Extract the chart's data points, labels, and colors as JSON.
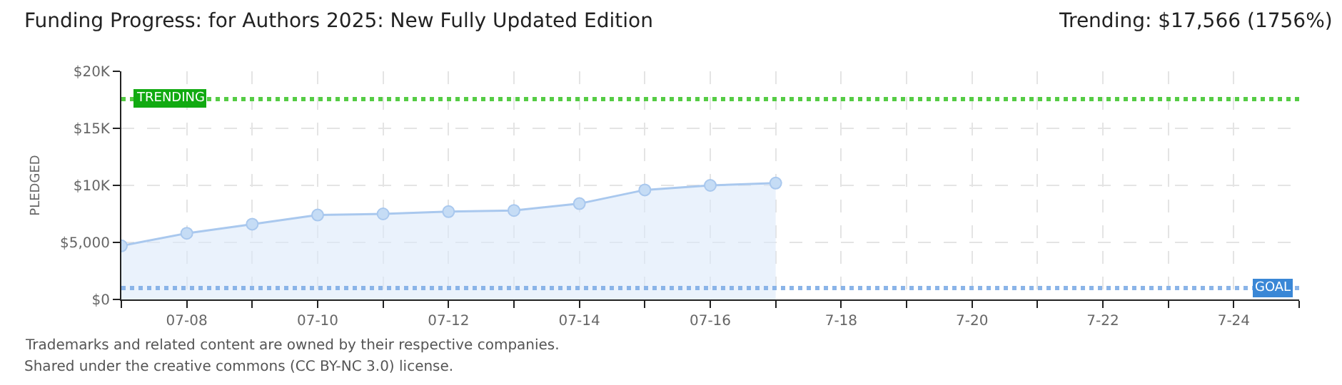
{
  "chart_data": {
    "type": "area",
    "title": "Funding Progress: for Authors 2025: New Fully Updated Edition",
    "subtitle": "Trending: $17,566 (1756%)",
    "ylabel": "PLEDGED",
    "x": [
      "--07-07",
      "--07-08",
      "--07-09",
      "--07-10",
      "--07-11",
      "--07-12",
      "--07-13",
      "--07-14",
      "--07-15",
      "--07-16",
      "--07-17"
    ],
    "values": [
      4700,
      5800,
      6600,
      7400,
      7500,
      7700,
      7800,
      8400,
      9600,
      10000,
      10200
    ],
    "color": "#a9c8ee",
    "marker": "circle",
    "grid": true,
    "xlim": [
      "--07-07",
      "--07-25"
    ],
    "xticks": [
      {
        "value": "--07-07",
        "label": null
      },
      {
        "value": "--07-08",
        "label": "07-08"
      },
      {
        "value": "--07-09",
        "label": null
      },
      {
        "value": "--07-10",
        "label": "07-10"
      },
      {
        "value": "--07-11",
        "label": null
      },
      {
        "value": "--07-12",
        "label": "07-12"
      },
      {
        "value": "--07-13",
        "label": null
      },
      {
        "value": "--07-14",
        "label": "07-14"
      },
      {
        "value": "--07-15",
        "label": null
      },
      {
        "value": "--07-16",
        "label": "07-16"
      },
      {
        "value": "--07-17",
        "label": null
      },
      {
        "value": "--07-18",
        "label": "7-18"
      },
      {
        "value": "--07-19",
        "label": null
      },
      {
        "value": "--07-20",
        "label": "7-20"
      },
      {
        "value": "--07-21",
        "label": null
      },
      {
        "value": "--07-22",
        "label": "7-22"
      },
      {
        "value": "--07-23",
        "label": null
      },
      {
        "value": "--07-24",
        "label": "7-24"
      },
      {
        "value": "--07-25",
        "label": null
      }
    ],
    "ylim": [
      0,
      20000
    ],
    "yticks": [
      {
        "value": 0,
        "label": "$0"
      },
      {
        "value": 5000,
        "label": "$5,000"
      },
      {
        "value": 10000,
        "label": "$10K"
      },
      {
        "value": 15000,
        "label": "$15K"
      },
      {
        "value": 20000,
        "label": "$20K"
      }
    ],
    "ref_lines": [
      {
        "axis": "y",
        "value": 17566,
        "label": "TRENDING",
        "color": "#55cc44",
        "line_style": "dotted"
      },
      {
        "axis": "y",
        "value": 1000,
        "label": "GOAL",
        "color": "#8ab4e8",
        "line_style": "dotted"
      }
    ],
    "annotations": [
      "Trademarks and related content are owned by their respective companies.",
      "Shared under the creative commons (CC BY-NC 3.0) license."
    ]
  }
}
